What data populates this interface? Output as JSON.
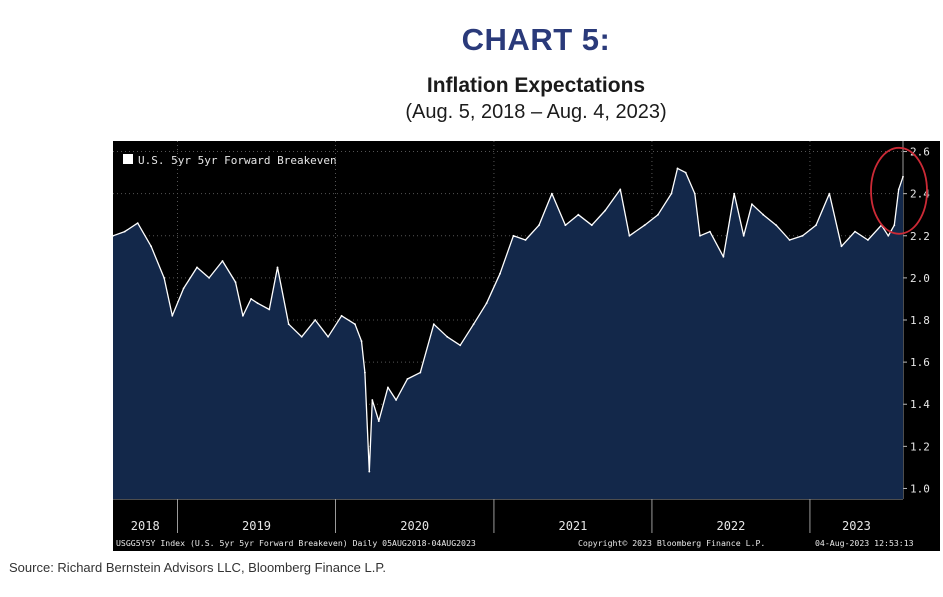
{
  "header": {
    "chart_label": "CHART 5:",
    "title": "Inflation Expectations",
    "subtitle": "(Aug. 5, 2018 – Aug. 4, 2023)"
  },
  "source": "Source: Richard Bernstein Advisors LLC, Bloomberg Finance L.P.",
  "footer": {
    "ticker": "USGG5Y5Y Index (U.S. 5yr 5yr Forward Breakeven)  Daily 05AUG2018-04AUG2023",
    "copyright": "Copyright© 2023 Bloomberg Finance L.P.",
    "timestamp": "04-Aug-2023 12:53:13"
  },
  "colors": {
    "background": "#000000",
    "area_fill": "#13284a",
    "line": "#ffffff",
    "grid": "#555555",
    "highlight_circle": "#cc2a36",
    "title_accent": "#2a3a7a"
  },
  "chart_data": {
    "type": "area",
    "title": "Inflation Expectations",
    "subtitle": "(Aug. 5, 2018 – Aug. 4, 2023)",
    "legend": [
      "U.S. 5yr 5yr Forward Breakeven"
    ],
    "legend_position": "top-left",
    "y_axis_position": "right",
    "ylim": [
      0.95,
      2.65
    ],
    "yticks": [
      1.0,
      1.2,
      1.4,
      1.6,
      1.8,
      2.0,
      2.2,
      2.4,
      2.6
    ],
    "ytick_labels": [
      "1.0",
      "1.2",
      "1.4",
      "1.6",
      "1.8",
      "2.0",
      "2.2",
      "2.4",
      "2.6"
    ],
    "xlim": [
      "2018-08-05",
      "2023-08-04"
    ],
    "x_year_labels": [
      "2018",
      "2019",
      "2020",
      "2021",
      "2022",
      "2023"
    ],
    "grid": true,
    "annotation": "red circle highlighting the latest values (~2.48)",
    "series": [
      {
        "name": "U.S. 5yr 5yr Forward Breakeven",
        "x": [
          "2018-08-05",
          "2018-09-01",
          "2018-10-01",
          "2018-11-01",
          "2018-12-01",
          "2018-12-20",
          "2019-01-15",
          "2019-02-15",
          "2019-03-15",
          "2019-04-15",
          "2019-05-15",
          "2019-06-01",
          "2019-06-20",
          "2019-07-05",
          "2019-08-01",
          "2019-08-20",
          "2019-09-15",
          "2019-10-15",
          "2019-11-15",
          "2019-12-15",
          "2020-01-15",
          "2020-02-15",
          "2020-03-01",
          "2020-03-09",
          "2020-03-19",
          "2020-03-26",
          "2020-04-10",
          "2020-05-01",
          "2020-05-20",
          "2020-06-15",
          "2020-07-15",
          "2020-08-15",
          "2020-09-15",
          "2020-10-15",
          "2020-11-15",
          "2020-12-15",
          "2021-01-15",
          "2021-02-15",
          "2021-03-15",
          "2021-04-15",
          "2021-05-15",
          "2021-06-15",
          "2021-07-15",
          "2021-08-15",
          "2021-09-15",
          "2021-10-20",
          "2021-11-10",
          "2021-12-15",
          "2022-01-15",
          "2022-02-15",
          "2022-03-01",
          "2022-03-20",
          "2022-04-10",
          "2022-04-22",
          "2022-05-15",
          "2022-06-15",
          "2022-07-10",
          "2022-08-01",
          "2022-08-20",
          "2022-09-15",
          "2022-10-15",
          "2022-11-15",
          "2022-12-15",
          "2023-01-15",
          "2023-02-15",
          "2023-03-15",
          "2023-04-15",
          "2023-05-15",
          "2023-06-15",
          "2023-07-01",
          "2023-07-15",
          "2023-07-25",
          "2023-08-04"
        ],
        "values": [
          2.2,
          2.22,
          2.26,
          2.15,
          2.0,
          1.82,
          1.95,
          2.05,
          2.0,
          2.08,
          1.98,
          1.82,
          1.9,
          1.88,
          1.85,
          2.05,
          1.78,
          1.72,
          1.8,
          1.72,
          1.82,
          1.78,
          1.7,
          1.55,
          1.08,
          1.42,
          1.32,
          1.48,
          1.42,
          1.52,
          1.55,
          1.78,
          1.72,
          1.68,
          1.78,
          1.88,
          2.02,
          2.2,
          2.18,
          2.25,
          2.4,
          2.25,
          2.3,
          2.25,
          2.32,
          2.42,
          2.2,
          2.25,
          2.3,
          2.4,
          2.52,
          2.5,
          2.4,
          2.2,
          2.22,
          2.1,
          2.4,
          2.2,
          2.35,
          2.3,
          2.25,
          2.18,
          2.2,
          2.25,
          2.4,
          2.15,
          2.22,
          2.18,
          2.25,
          2.2,
          2.25,
          2.42,
          2.48
        ]
      }
    ]
  }
}
